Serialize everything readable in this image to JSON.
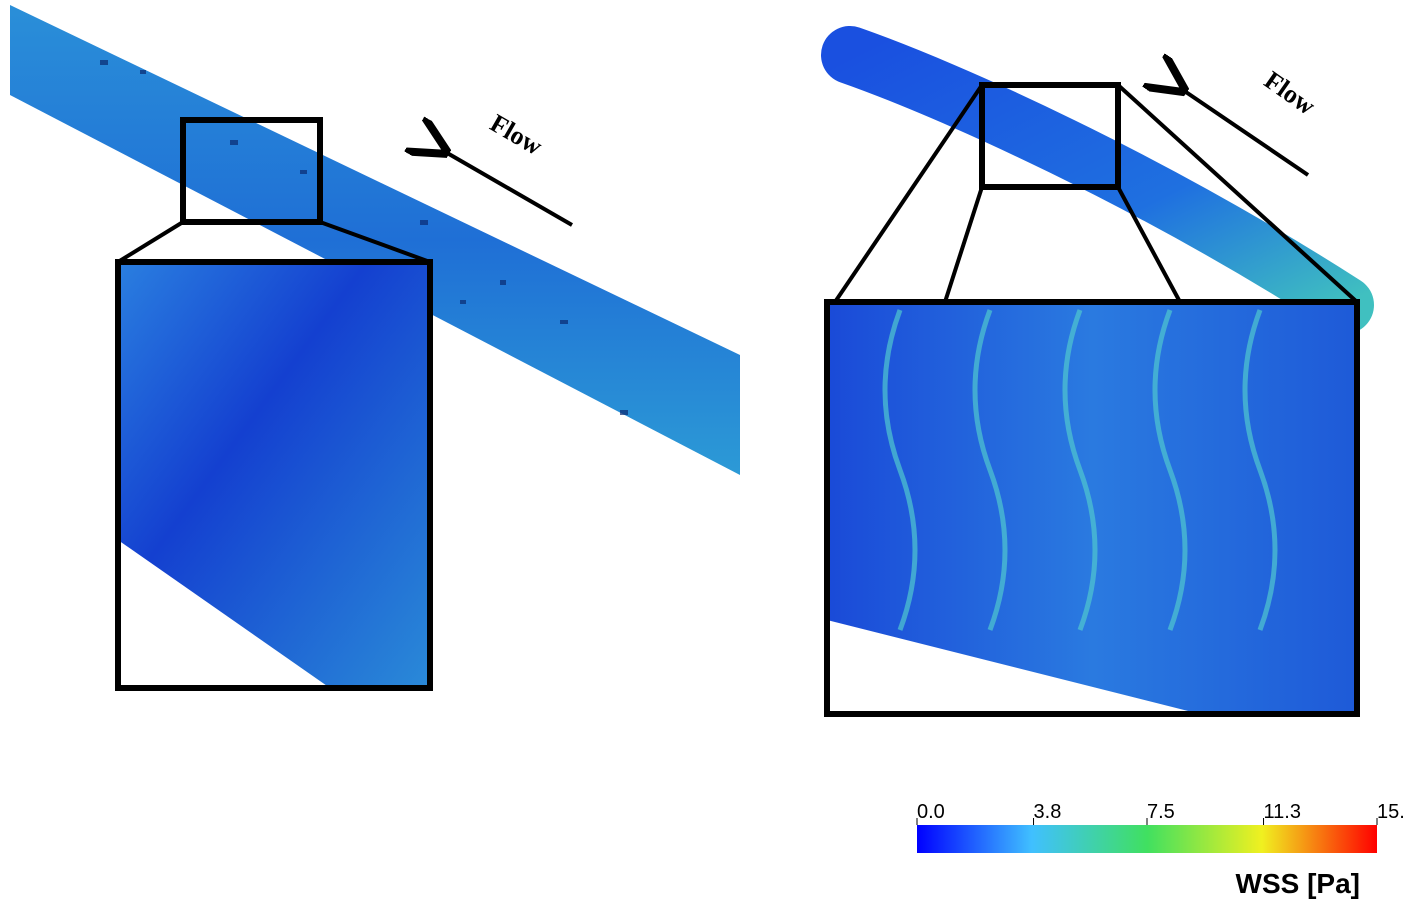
{
  "panels": [
    {
      "flow_label": "Flow"
    },
    {
      "flow_label": "Flow"
    }
  ],
  "colorbar": {
    "title": "WSS [Pa]",
    "lim": [
      0,
      15
    ],
    "ticks": [
      {
        "value": 0,
        "label": "0.0"
      },
      {
        "value": 3.8,
        "label": "3.8"
      },
      {
        "value": 7.5,
        "label": "7.5"
      },
      {
        "value": 11.3,
        "label": "11.3"
      },
      {
        "value": 15,
        "label": "15."
      }
    ]
  }
}
